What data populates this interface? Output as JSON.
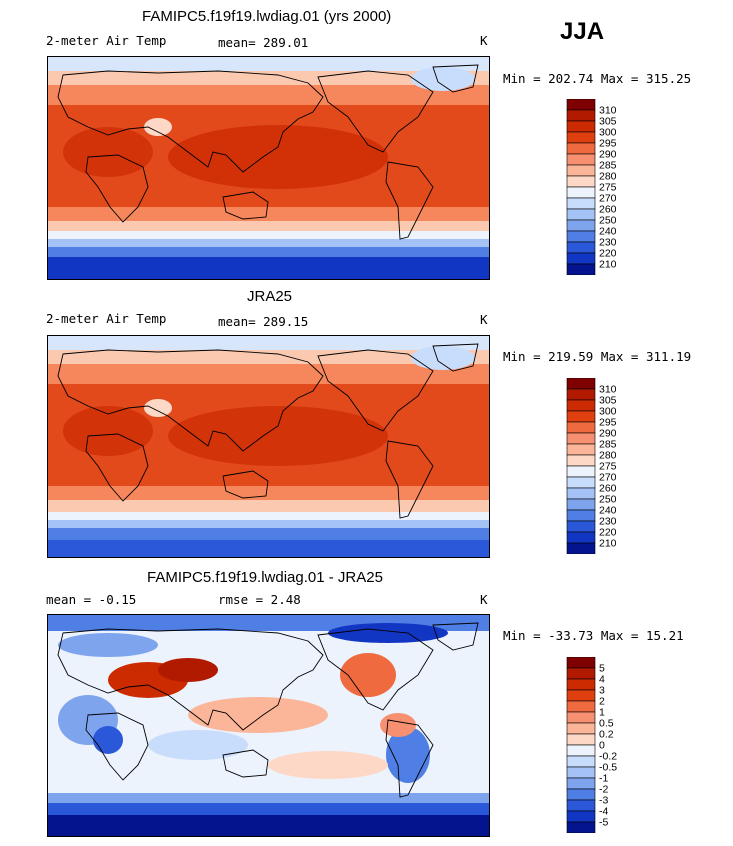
{
  "season": "JJA",
  "panels": [
    {
      "title": "FAMIPC5.f19f19.lwdiag.01 (yrs 2000)",
      "left_label": "2-meter Air Temp",
      "middle_label": "mean=  289.01",
      "units": "K",
      "minmax": "Min = 202.74 Max = 315.25",
      "cbar_labels": [
        "310",
        "305",
        "300",
        "295",
        "290",
        "285",
        "280",
        "275",
        "270",
        "260",
        "250",
        "240",
        "230",
        "220",
        "210"
      ],
      "cbar_colors": [
        "#7f0000",
        "#b21a00",
        "#cc2a00",
        "#e04010",
        "#f06a40",
        "#f79070",
        "#fbb598",
        "#fdd8c6",
        "#ecf3fd",
        "#c8dcfb",
        "#a4c2f5",
        "#7ea4ee",
        "#4f7ee4",
        "#2a58d8",
        "#1236c4",
        "#04148f"
      ]
    },
    {
      "title": "JRA25",
      "left_label": "2-meter Air Temp",
      "middle_label": "mean=  289.15",
      "units": "K",
      "minmax": "Min = 219.59 Max = 311.19",
      "cbar_labels": [
        "310",
        "305",
        "300",
        "295",
        "290",
        "285",
        "280",
        "275",
        "270",
        "260",
        "250",
        "240",
        "230",
        "220",
        "210"
      ],
      "cbar_colors": [
        "#7f0000",
        "#b21a00",
        "#cc2a00",
        "#e04010",
        "#f06a40",
        "#f79070",
        "#fbb598",
        "#fdd8c6",
        "#ecf3fd",
        "#c8dcfb",
        "#a4c2f5",
        "#7ea4ee",
        "#4f7ee4",
        "#2a58d8",
        "#1236c4",
        "#04148f"
      ]
    },
    {
      "title": "FAMIPC5.f19f19.lwdiag.01 - JRA25",
      "left_label": "mean =   -0.15",
      "middle_label": "rmse =    2.48",
      "units": "K",
      "minmax": "Min = -33.73 Max =  15.21",
      "cbar_labels": [
        "5",
        "4",
        "3",
        "2",
        "1",
        "0.5",
        "0.2",
        "0",
        "-0.2",
        "-0.5",
        "-1",
        "-2",
        "-3",
        "-4",
        "-5"
      ],
      "cbar_colors": [
        "#7f0000",
        "#b21a00",
        "#cc2a00",
        "#e04010",
        "#f06a40",
        "#f79070",
        "#fbb598",
        "#fdd8c6",
        "#ecf3fd",
        "#c8dcfb",
        "#a4c2f5",
        "#7ea4ee",
        "#4f7ee4",
        "#2a58d8",
        "#1236c4",
        "#04148f"
      ]
    }
  ]
}
